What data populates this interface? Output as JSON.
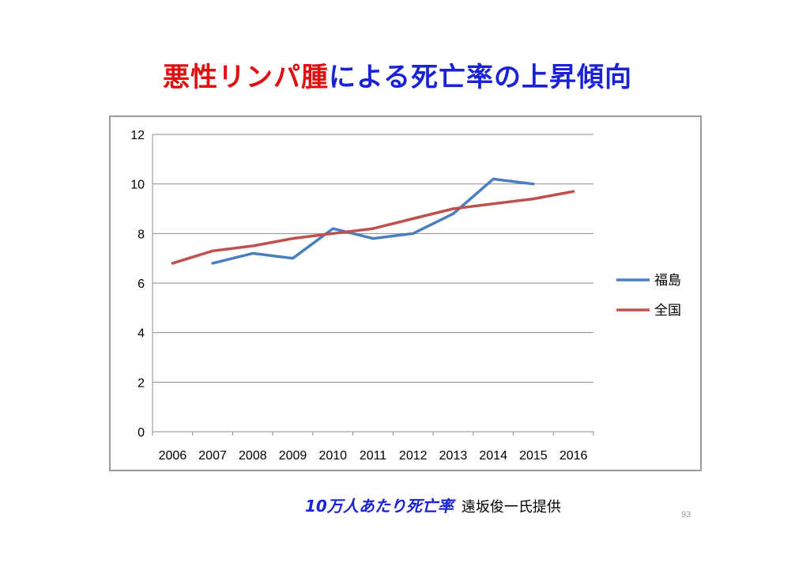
{
  "title": {
    "part_red": "悪性リンパ腫",
    "part_blue": "による死亡率の上昇傾向"
  },
  "caption": {
    "emphasis": "10万人あたり死亡率",
    "credit": "遠坂俊一氏提供"
  },
  "page_number": "93",
  "colors": {
    "title_red": "#e01010",
    "title_blue": "#1a22d8",
    "fukushima": "#4a7ec0",
    "national": "#c0504d",
    "grid": "#8c8c8c"
  },
  "chart_data": {
    "type": "line",
    "categories": [
      "2006",
      "2007",
      "2008",
      "2009",
      "2010",
      "2011",
      "2012",
      "2013",
      "2014",
      "2015",
      "2016"
    ],
    "ylim": [
      0,
      12
    ],
    "yticks": [
      "0",
      "2",
      "4",
      "6",
      "8",
      "10",
      "12"
    ],
    "grid": true,
    "legend_position": "right",
    "series": [
      {
        "name": "福島",
        "color": "#4a7ec0",
        "values": [
          null,
          6.8,
          7.2,
          7.0,
          8.2,
          7.8,
          8.0,
          8.8,
          10.2,
          10.0,
          null
        ]
      },
      {
        "name": "全国",
        "color": "#c0504d",
        "values": [
          6.8,
          7.3,
          7.5,
          7.8,
          8.0,
          8.2,
          8.6,
          9.0,
          9.2,
          9.4,
          9.7
        ]
      }
    ]
  }
}
